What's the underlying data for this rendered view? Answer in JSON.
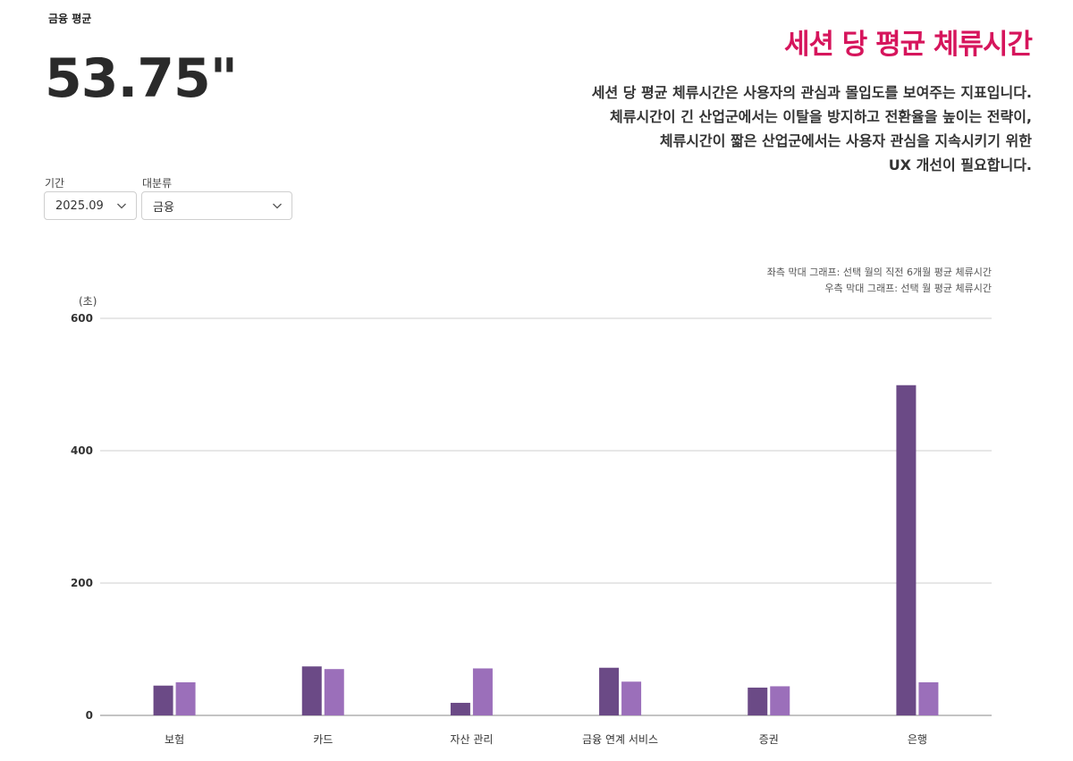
{
  "summary": {
    "label": "금융 평균",
    "value": "53.75\""
  },
  "header": {
    "title": "세션 당 평균 체류시간",
    "description_lines": [
      "세션 당 평균 체류시간은 사용자의 관심과 몰입도를 보여주는 지표입니다.",
      "체류시간이 긴 산업군에서는 이탈을 방지하고 전환율을 높이는 전략이,",
      "체류시간이 짧은 산업군에서는 사용자 관심을 지속시키기 위한",
      "UX 개선이 필요합니다."
    ]
  },
  "filters": {
    "period": {
      "label": "기간",
      "value": "2025.09"
    },
    "category": {
      "label": "대분류",
      "value": "금융"
    }
  },
  "legend_notes": [
    "좌측 막대 그래프: 선택 월의 직전 6개월 평균 체류시간",
    "우측 막대 그래프: 선택 월 평균 체류시간"
  ],
  "colors": {
    "accent": "#d6155c",
    "bar_left": "#6b4a86",
    "bar_right": "#9b6fba"
  },
  "chart_data": {
    "type": "bar",
    "ylabel": "(초)",
    "ylim": [
      0,
      600
    ],
    "yticks": [
      0,
      200,
      400,
      600
    ],
    "categories": [
      "보험",
      "카드",
      "자산 관리",
      "금융 연계 서비스",
      "증권",
      "은행"
    ],
    "series": [
      {
        "values": [
          45,
          74,
          19,
          72,
          42,
          499
        ]
      },
      {
        "values": [
          50,
          70,
          71,
          51,
          44,
          50
        ]
      }
    ],
    "grid": true
  }
}
